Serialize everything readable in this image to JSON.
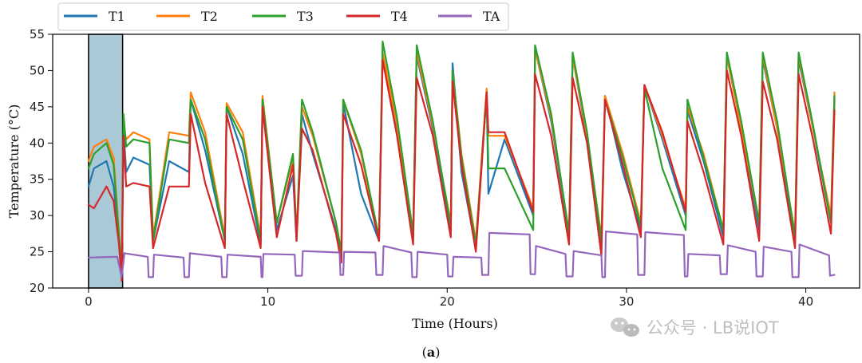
{
  "chart_data": {
    "type": "line",
    "xlabel": "Time (Hours)",
    "ylabel": "Temperature (°C)",
    "xlim": [
      -2.0,
      43.0
    ],
    "ylim": [
      20.0,
      55.0
    ],
    "xticks": [
      0,
      10,
      20,
      30,
      40
    ],
    "yticks": [
      20,
      25,
      30,
      35,
      40,
      45,
      50,
      55
    ],
    "grid": false,
    "legend_position": "top-left, above plot",
    "highlight_region": {
      "x_start": 0.0,
      "x_end": 1.9,
      "y_start": 20.0,
      "y_end": 55.0,
      "color": "#a9c9d6"
    },
    "caption": {
      "open": "(",
      "label": "a",
      "close": ")"
    },
    "series": [
      {
        "name": "T1",
        "color": "#1f77b4",
        "x": [
          0.0,
          0.3,
          1.0,
          1.4,
          1.7,
          1.85,
          1.95,
          2.1,
          2.5,
          3.4,
          3.6,
          4.5,
          5.6,
          5.7,
          6.5,
          7.6,
          7.7,
          8.6,
          9.6,
          9.7,
          10.5,
          11.4,
          11.6,
          11.9,
          12.5,
          13.8,
          14.1,
          14.2,
          15.2,
          16.2,
          16.4,
          17.2,
          18.1,
          18.3,
          19.2,
          20.2,
          20.3,
          20.8,
          21.6,
          22.2,
          22.3,
          23.2,
          24.8,
          24.9,
          25.8,
          26.8,
          27.0,
          27.8,
          28.6,
          28.8,
          29.8,
          30.8,
          31.0,
          32.0,
          33.3,
          33.4,
          34.3,
          35.4,
          35.6,
          36.4,
          37.4,
          37.6,
          38.4,
          39.4,
          39.6,
          40.4,
          41.4,
          41.6
        ],
        "values": [
          34.0,
          36.5,
          37.5,
          34.0,
          27.0,
          21.5,
          42.0,
          36.0,
          38.0,
          37.0,
          26.5,
          37.5,
          36.0,
          46.0,
          39.0,
          26.5,
          45.0,
          38.5,
          26.0,
          46.0,
          28.0,
          35.5,
          26.5,
          44.0,
          38.5,
          28.0,
          24.0,
          45.5,
          33.0,
          26.5,
          52.0,
          42.0,
          27.0,
          52.0,
          42.0,
          28.0,
          51.0,
          36.0,
          25.5,
          47.0,
          33.0,
          40.5,
          30.0,
          53.0,
          43.0,
          27.0,
          52.0,
          40.5,
          26.0,
          46.5,
          36.0,
          28.0,
          48.0,
          40.5,
          30.0,
          44.5,
          37.5,
          27.0,
          52.0,
          42.0,
          28.0,
          51.5,
          42.0,
          26.5,
          51.5,
          42.0,
          29.0,
          46.0
        ]
      },
      {
        "name": "T2",
        "color": "#ff7f0e",
        "x": [
          0.0,
          0.3,
          1.0,
          1.4,
          1.7,
          1.85,
          1.95,
          2.1,
          2.5,
          3.4,
          3.6,
          4.5,
          5.6,
          5.7,
          6.5,
          7.6,
          7.7,
          8.6,
          9.6,
          9.7,
          10.5,
          11.4,
          11.6,
          11.9,
          12.5,
          13.8,
          14.1,
          14.2,
          15.2,
          16.2,
          16.4,
          17.2,
          18.1,
          18.3,
          19.2,
          20.2,
          20.3,
          20.8,
          21.6,
          22.2,
          22.3,
          23.2,
          24.8,
          24.9,
          25.8,
          26.8,
          27.0,
          27.8,
          28.6,
          28.8,
          29.8,
          30.8,
          31.0,
          32.0,
          33.3,
          33.4,
          34.3,
          35.4,
          35.6,
          36.4,
          37.4,
          37.6,
          38.4,
          39.4,
          39.6,
          40.4,
          41.4,
          41.6
        ],
        "values": [
          37.5,
          39.5,
          40.5,
          38.0,
          27.5,
          22.0,
          42.5,
          40.5,
          41.5,
          40.5,
          27.0,
          41.5,
          41.0,
          47.0,
          41.5,
          27.0,
          45.5,
          41.5,
          27.0,
          46.5,
          29.0,
          38.0,
          27.0,
          45.0,
          41.0,
          29.0,
          25.0,
          46.0,
          38.5,
          27.0,
          52.5,
          42.5,
          27.5,
          52.5,
          42.5,
          29.0,
          50.0,
          38.5,
          26.5,
          47.5,
          41.0,
          41.0,
          31.0,
          53.0,
          43.5,
          27.5,
          52.0,
          41.0,
          27.0,
          46.5,
          38.5,
          29.0,
          48.0,
          41.0,
          31.0,
          45.0,
          38.5,
          28.0,
          52.0,
          42.0,
          29.0,
          52.0,
          42.0,
          27.5,
          52.0,
          42.0,
          30.0,
          47.0
        ]
      },
      {
        "name": "T3",
        "color": "#2ca02c",
        "x": [
          0.0,
          0.3,
          1.0,
          1.4,
          1.7,
          1.85,
          1.95,
          2.1,
          2.5,
          3.4,
          3.6,
          4.5,
          5.6,
          5.7,
          6.5,
          7.6,
          7.7,
          8.6,
          9.6,
          9.7,
          10.5,
          11.4,
          11.6,
          11.9,
          12.5,
          13.8,
          14.1,
          14.2,
          15.2,
          16.2,
          16.4,
          17.2,
          18.1,
          18.3,
          19.2,
          20.2,
          20.3,
          20.8,
          21.6,
          22.2,
          22.3,
          23.2,
          24.8,
          24.9,
          25.8,
          26.8,
          27.0,
          27.8,
          28.6,
          28.8,
          29.8,
          30.8,
          31.0,
          32.0,
          33.3,
          33.4,
          34.3,
          35.4,
          35.6,
          36.4,
          37.4,
          37.6,
          38.4,
          39.4,
          39.6,
          40.4,
          41.4,
          41.6
        ],
        "values": [
          36.5,
          38.5,
          40.0,
          37.0,
          27.0,
          22.0,
          44.0,
          39.5,
          40.5,
          40.0,
          26.5,
          40.5,
          40.0,
          46.0,
          40.5,
          26.5,
          45.0,
          40.5,
          26.5,
          46.0,
          29.0,
          38.5,
          27.0,
          46.0,
          41.5,
          29.0,
          25.0,
          46.0,
          39.0,
          27.0,
          54.0,
          43.5,
          27.5,
          53.5,
          43.0,
          28.5,
          50.0,
          38.0,
          26.0,
          47.0,
          36.5,
          36.5,
          28.0,
          53.5,
          44.0,
          27.5,
          52.5,
          41.5,
          26.5,
          46.0,
          38.0,
          28.5,
          47.5,
          36.5,
          28.0,
          46.0,
          38.0,
          28.0,
          52.5,
          43.0,
          29.0,
          52.5,
          43.0,
          27.0,
          52.5,
          42.5,
          29.0,
          46.5
        ]
      },
      {
        "name": "T4",
        "color": "#d62728",
        "x": [
          0.0,
          0.3,
          1.0,
          1.4,
          1.7,
          1.85,
          1.95,
          2.1,
          2.5,
          3.4,
          3.6,
          4.5,
          5.6,
          5.7,
          6.5,
          7.6,
          7.7,
          8.6,
          9.6,
          9.7,
          10.5,
          11.4,
          11.6,
          11.9,
          12.5,
          13.8,
          14.1,
          14.2,
          15.2,
          16.2,
          16.4,
          17.2,
          18.1,
          18.3,
          19.2,
          20.2,
          20.3,
          20.8,
          21.6,
          22.2,
          22.3,
          23.2,
          24.8,
          24.9,
          25.8,
          26.8,
          27.0,
          27.8,
          28.6,
          28.8,
          29.8,
          30.8,
          31.0,
          32.0,
          33.3,
          33.4,
          34.3,
          35.4,
          35.6,
          36.4,
          37.4,
          37.6,
          38.4,
          39.4,
          39.6,
          40.4,
          41.4,
          41.6
        ],
        "values": [
          31.5,
          31.0,
          34.0,
          32.0,
          26.0,
          21.0,
          41.0,
          34.0,
          34.5,
          34.0,
          25.5,
          34.0,
          34.0,
          44.0,
          34.5,
          25.5,
          44.0,
          35.0,
          25.5,
          45.0,
          27.0,
          37.0,
          26.5,
          42.0,
          39.0,
          27.5,
          23.5,
          44.0,
          37.0,
          26.5,
          51.5,
          41.0,
          26.0,
          49.0,
          41.0,
          27.0,
          48.5,
          37.0,
          25.0,
          47.0,
          41.5,
          41.5,
          30.5,
          49.5,
          41.0,
          26.0,
          49.0,
          40.0,
          24.5,
          46.0,
          37.0,
          27.0,
          48.0,
          41.5,
          30.5,
          43.0,
          36.0,
          26.0,
          50.0,
          41.0,
          26.5,
          48.5,
          40.5,
          25.5,
          49.5,
          40.5,
          27.5,
          44.5
        ]
      },
      {
        "name": "TA",
        "color": "#9467bd",
        "x": [
          0.0,
          1.6,
          1.85,
          2.0,
          3.3,
          3.35,
          3.6,
          3.65,
          5.3,
          5.35,
          5.6,
          5.65,
          7.4,
          7.45,
          7.7,
          7.75,
          9.6,
          9.65,
          9.7,
          9.75,
          11.5,
          11.55,
          11.9,
          11.95,
          14.0,
          14.05,
          14.2,
          14.25,
          16.0,
          16.05,
          16.4,
          16.45,
          18.0,
          18.05,
          18.3,
          18.35,
          20.0,
          20.05,
          20.3,
          20.35,
          21.9,
          21.95,
          22.3,
          22.35,
          24.6,
          24.65,
          24.9,
          24.95,
          26.6,
          26.65,
          27.0,
          27.05,
          28.6,
          28.65,
          28.8,
          28.85,
          30.6,
          30.65,
          31.0,
          31.05,
          33.2,
          33.25,
          33.4,
          33.45,
          35.2,
          35.25,
          35.6,
          35.65,
          37.2,
          37.25,
          37.6,
          37.65,
          39.2,
          39.25,
          39.6,
          39.65,
          41.3,
          41.35,
          41.6
        ],
        "values": [
          24.2,
          24.3,
          21.5,
          24.8,
          24.3,
          21.5,
          21.5,
          24.6,
          24.2,
          21.5,
          21.5,
          24.8,
          24.3,
          21.5,
          21.5,
          24.6,
          24.3,
          21.5,
          21.5,
          24.7,
          24.6,
          21.7,
          21.7,
          25.1,
          24.9,
          21.8,
          21.8,
          25.0,
          24.9,
          21.8,
          21.8,
          25.8,
          24.9,
          21.5,
          21.5,
          25.0,
          24.6,
          21.6,
          21.6,
          24.3,
          24.2,
          21.8,
          21.8,
          27.6,
          27.4,
          21.9,
          21.9,
          25.8,
          24.7,
          21.6,
          21.6,
          25.1,
          24.5,
          21.5,
          21.5,
          27.8,
          27.4,
          21.8,
          21.8,
          27.7,
          27.3,
          21.6,
          21.6,
          24.7,
          24.5,
          21.9,
          21.9,
          25.9,
          25.0,
          21.6,
          21.6,
          25.7,
          25.0,
          21.5,
          21.5,
          26.0,
          24.5,
          21.7,
          21.8
        ]
      }
    ]
  },
  "watermark": {
    "icon": "wechat-icon",
    "text": "公众号 · LB说IOT"
  }
}
